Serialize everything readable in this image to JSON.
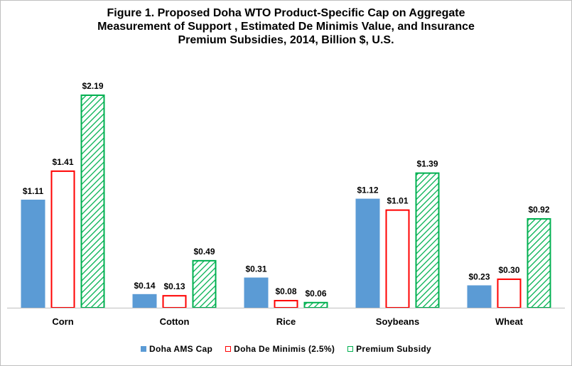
{
  "chart_data": {
    "type": "bar",
    "title_lines": [
      "Figure 1.  Proposed Doha WTO Product-Specific Cap on Aggregate",
      "Measurement of Support , Estimated De Minimis Value, and Insurance",
      "Premium Subsidies,  2014, Billion $, U.S."
    ],
    "categories": [
      "Corn",
      "Cotton",
      "Rice",
      "Soybeans",
      "Wheat"
    ],
    "series": [
      {
        "name": "Doha AMS Cap",
        "values": [
          1.11,
          0.14,
          0.31,
          1.12,
          0.23
        ],
        "labels": [
          "$1.11",
          "$0.14",
          "$0.31",
          "$1.12",
          "$0.23"
        ],
        "color": "#5b9bd5",
        "style": "solid"
      },
      {
        "name": "Doha De Minimis (2.5%)",
        "values": [
          1.41,
          0.13,
          0.08,
          1.01,
          0.3
        ],
        "labels": [
          "$1.41",
          "$0.13",
          "$0.08",
          "$1.01",
          "$0.30"
        ],
        "color": "#ff0000",
        "style": "outline"
      },
      {
        "name": "Premium Subsidy",
        "values": [
          2.19,
          0.49,
          0.06,
          1.39,
          0.92
        ],
        "labels": [
          "$2.19",
          "$0.49",
          "$0.06",
          "$1.39",
          "$0.92"
        ],
        "color": "#00b050",
        "style": "hatched"
      }
    ],
    "ylim": [
      0,
      2.4
    ],
    "grid": false,
    "legend_position": "bottom",
    "xlabel": "",
    "ylabel": ""
  }
}
